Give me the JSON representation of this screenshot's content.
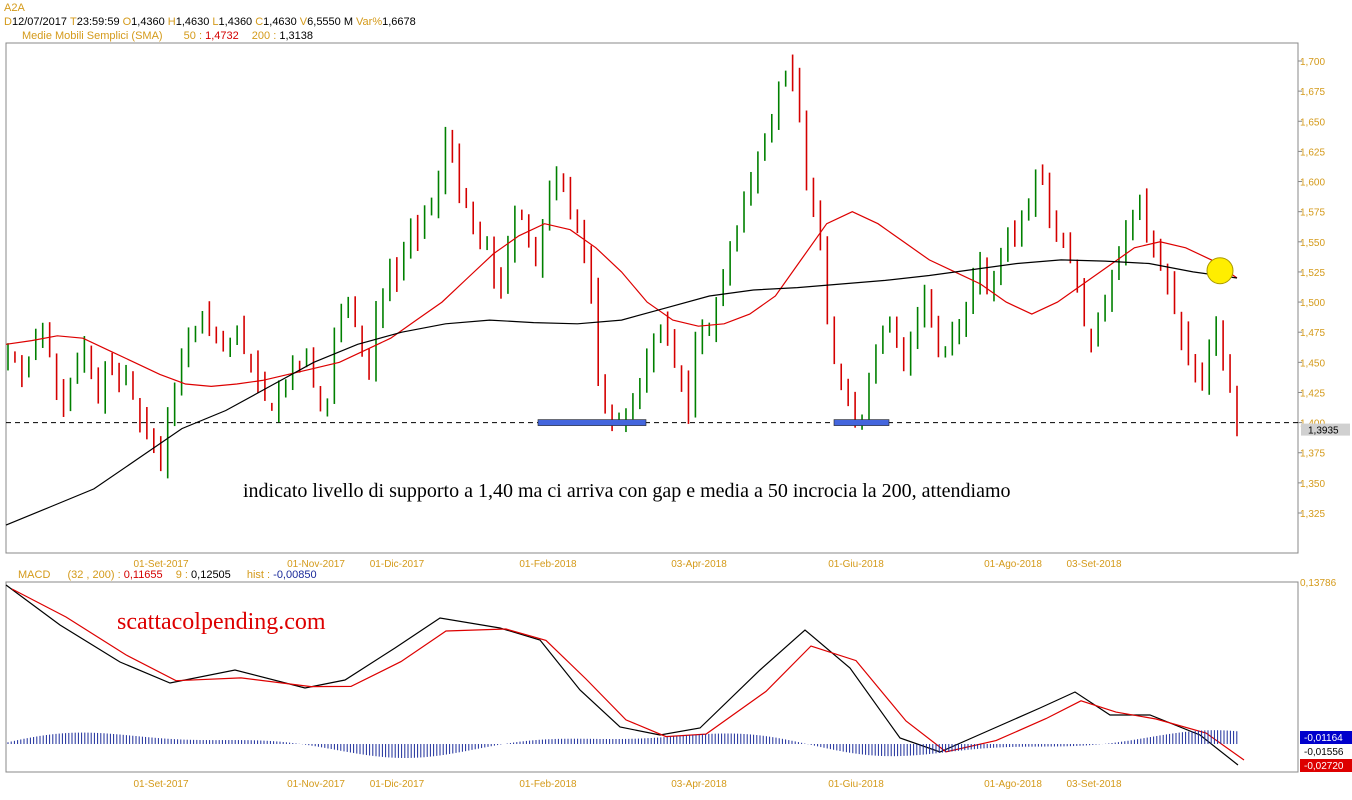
{
  "header": {
    "symbol": "A2A",
    "ohlc": [
      {
        "k": "D",
        "v": "12/07/2017"
      },
      {
        "k": "T",
        "v": "23:59:59"
      },
      {
        "k": "O",
        "v": "1,4360"
      },
      {
        "k": "H",
        "v": "1,4630"
      },
      {
        "k": "L",
        "v": "1,4360"
      },
      {
        "k": "C",
        "v": "1,4630"
      },
      {
        "k": "V",
        "v": "6,5550 M"
      },
      {
        "k": "Var%",
        "v": "1,6678"
      }
    ],
    "sma": {
      "label": "Medie Mobili Semplici (SMA)",
      "p50": "50 :",
      "v50": "1,4732",
      "p200": "200 :",
      "v200": "1,3138"
    },
    "macd": {
      "label": "MACD",
      "params": "(32 , 200) :",
      "macd": "0,11655",
      "sig_lbl": "9 :",
      "sig": "0,12505",
      "hist_lbl": "hist :",
      "hist": "-0,00850"
    }
  },
  "annotation": "indicato livello di supporto a 1,40 ma ci arriva con gap e media a 50 incrocia la 200, attendiamo",
  "watermark": "scattacolpending.com",
  "price_axis": {
    "ticks": [
      "1,700",
      "1,675",
      "1,650",
      "1,625",
      "1,600",
      "1,575",
      "1,550",
      "1,525",
      "1,500",
      "1,475",
      "1,450",
      "1,425",
      "1,400",
      "1,375",
      "1,350",
      "1,325"
    ],
    "last_price": "1,3935"
  },
  "macd_axis": {
    "top": "0,13786",
    "badges": [
      {
        "v": "-0,01164",
        "bg": "#0000cc",
        "fg": "#ffffff"
      },
      {
        "v": "-0,01556",
        "bg": "#ffffff",
        "fg": "#000000"
      },
      {
        "v": "-0,02720",
        "bg": "#dd0000",
        "fg": "#ffffff"
      }
    ]
  },
  "dates": [
    "01-Set-2017",
    "01-Nov-2017",
    "01-Dic-2017",
    "01-Feb-2018",
    "03-Apr-2018",
    "01-Giu-2018",
    "01-Ago-2018",
    "03-Set-2018"
  ],
  "colors": {
    "up": "#008000",
    "down": "#d40000",
    "sma50": "#dd0000",
    "sma200": "#000000",
    "macd": "#000000",
    "signal": "#dd0000",
    "hist": "#1a2a9a",
    "axis": "#d49a1a",
    "support": "#4466dd",
    "marker": "#ffee00"
  },
  "chart_data": {
    "type": "line",
    "support_level": 1.4,
    "ylim": [
      1.3,
      1.71
    ],
    "candles_close": [
      1.46,
      1.455,
      1.44,
      1.45,
      1.47,
      1.48,
      1.46,
      1.43,
      1.41,
      1.435,
      1.45,
      1.46,
      1.44,
      1.42,
      1.45,
      1.445,
      1.43,
      1.44,
      1.42,
      1.4,
      1.39,
      1.38,
      1.365,
      1.41,
      1.43,
      1.45,
      1.47,
      1.48,
      1.49,
      1.475,
      1.47,
      1.46,
      1.465,
      1.475,
      1.46,
      1.45,
      1.435,
      1.42,
      1.41,
      1.425,
      1.43,
      1.45,
      1.445,
      1.46,
      1.43,
      1.415,
      1.42,
      1.47,
      1.49,
      1.5,
      1.48,
      1.455,
      1.44,
      1.49,
      1.51,
      1.53,
      1.52,
      1.545,
      1.56,
      1.55,
      1.575,
      1.58,
      1.6,
      1.64,
      1.62,
      1.59,
      1.58,
      1.56,
      1.55,
      1.55,
      1.52,
      1.51,
      1.545,
      1.575,
      1.57,
      1.55,
      1.53,
      1.56,
      1.59,
      1.61,
      1.6,
      1.575,
      1.56,
      1.535,
      1.51,
      1.44,
      1.41,
      1.4,
      1.405,
      1.41,
      1.415,
      1.43,
      1.45,
      1.47,
      1.48,
      1.47,
      1.45,
      1.43,
      1.41,
      1.465,
      1.475,
      1.48,
      1.5,
      1.52,
      1.545,
      1.56,
      1.585,
      1.6,
      1.625,
      1.64,
      1.655,
      1.675,
      1.69,
      1.685,
      1.66,
      1.6,
      1.575,
      1.55,
      1.49,
      1.45,
      1.43,
      1.42,
      1.4,
      1.405,
      1.44,
      1.46,
      1.475,
      1.48,
      1.465,
      1.45,
      1.47,
      1.49,
      1.505,
      1.48,
      1.455,
      1.46,
      1.475,
      1.48,
      1.5,
      1.52,
      1.53,
      1.51,
      1.515,
      1.54,
      1.56,
      1.55,
      1.575,
      1.585,
      1.61,
      1.6,
      1.57,
      1.56,
      1.545,
      1.54,
      1.51,
      1.48,
      1.465,
      1.49,
      1.505,
      1.52,
      1.535,
      1.56,
      1.575,
      1.58,
      1.56,
      1.545,
      1.53,
      1.51,
      1.49,
      1.47,
      1.45,
      1.44,
      1.43,
      1.46,
      1.48,
      1.455,
      1.43,
      1.393
    ],
    "sma50": [
      1.465,
      1.468,
      1.472,
      1.47,
      1.46,
      1.45,
      1.44,
      1.432,
      1.43,
      1.432,
      1.435,
      1.44,
      1.445,
      1.45,
      1.46,
      1.47,
      1.485,
      1.5,
      1.52,
      1.54,
      1.555,
      1.565,
      1.56,
      1.545,
      1.525,
      1.5,
      1.485,
      1.48,
      1.482,
      1.49,
      1.505,
      1.535,
      1.565,
      1.575,
      1.565,
      1.55,
      1.535,
      1.525,
      1.515,
      1.5,
      1.49,
      1.5,
      1.515,
      1.53,
      1.545,
      1.55,
      1.545,
      1.535,
      1.52
    ],
    "sma200": [
      1.315,
      1.33,
      1.345,
      1.37,
      1.395,
      1.41,
      1.43,
      1.45,
      1.465,
      1.475,
      1.482,
      1.485,
      1.483,
      1.482,
      1.485,
      1.495,
      1.505,
      1.51,
      1.512,
      1.515,
      1.518,
      1.522,
      1.527,
      1.532,
      1.535,
      1.534,
      1.532,
      1.525,
      1.52
    ]
  }
}
